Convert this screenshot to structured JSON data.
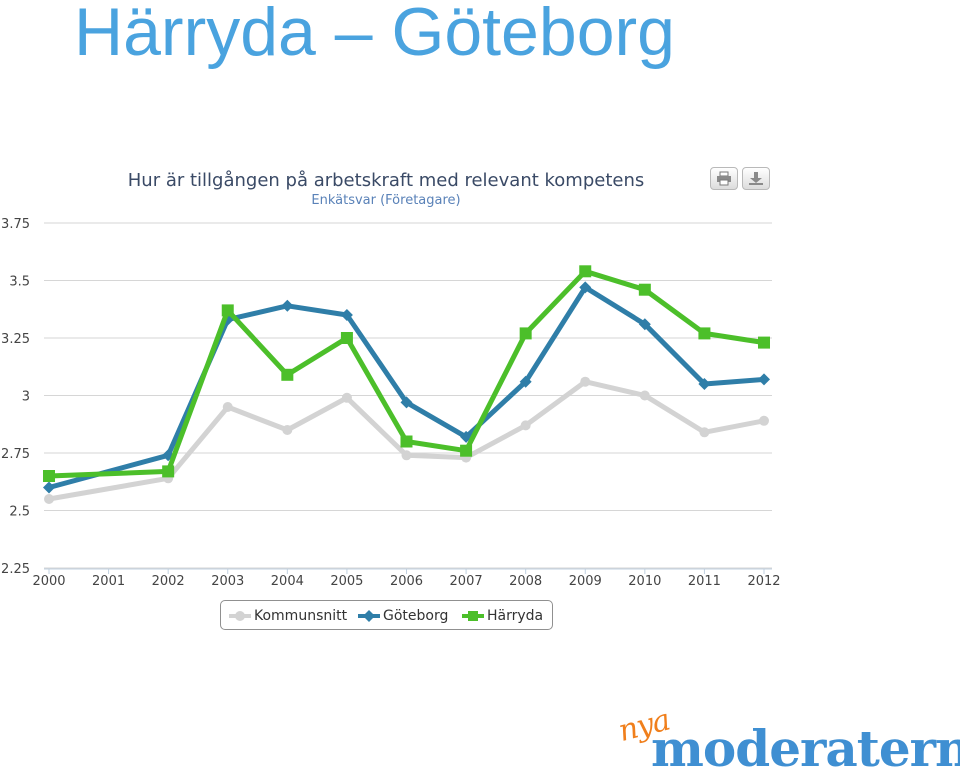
{
  "slide": {
    "title": "Härryda – Göteborg"
  },
  "toolbar": {
    "print_icon": "printer-icon",
    "download_icon": "download-icon"
  },
  "brand": {
    "script": "nya",
    "word": "moderaterna",
    "script_color": "#f07f1c",
    "word_color": "#3f8fd2"
  },
  "chart_data": {
    "type": "line",
    "title": "Hur är tillgången på arbetskraft med relevant kompetens",
    "subtitle": "Enkätsvar (Företagare)",
    "xlabel": "",
    "ylabel": "",
    "categories": [
      "2000",
      "2001",
      "2002",
      "2003",
      "2004",
      "2005",
      "2006",
      "2007",
      "2008",
      "2009",
      "2010",
      "2011",
      "2012"
    ],
    "ylim": [
      2.25,
      3.75
    ],
    "yticks": [
      "2.25",
      "2.5",
      "2.75",
      "3",
      "3.25",
      "3.5",
      "3.75"
    ],
    "grid": true,
    "legend_position": "bottom",
    "series": [
      {
        "name": "Kommunsnitt",
        "color": "#d3d3d3",
        "marker": "circle",
        "values": [
          2.55,
          null,
          2.64,
          2.95,
          2.85,
          2.99,
          2.74,
          2.73,
          2.87,
          3.06,
          3.0,
          2.84,
          2.89
        ]
      },
      {
        "name": "Göteborg",
        "color": "#2f7ea8",
        "marker": "diamond",
        "values": [
          2.6,
          null,
          2.74,
          3.33,
          3.39,
          3.35,
          2.97,
          2.82,
          3.06,
          3.47,
          3.31,
          3.05,
          3.07
        ]
      },
      {
        "name": "Härryda",
        "color": "#4cbf2a",
        "marker": "square",
        "values": [
          2.65,
          null,
          2.67,
          3.37,
          3.09,
          3.25,
          2.8,
          2.76,
          3.27,
          3.54,
          3.46,
          3.27,
          3.23
        ]
      }
    ]
  }
}
